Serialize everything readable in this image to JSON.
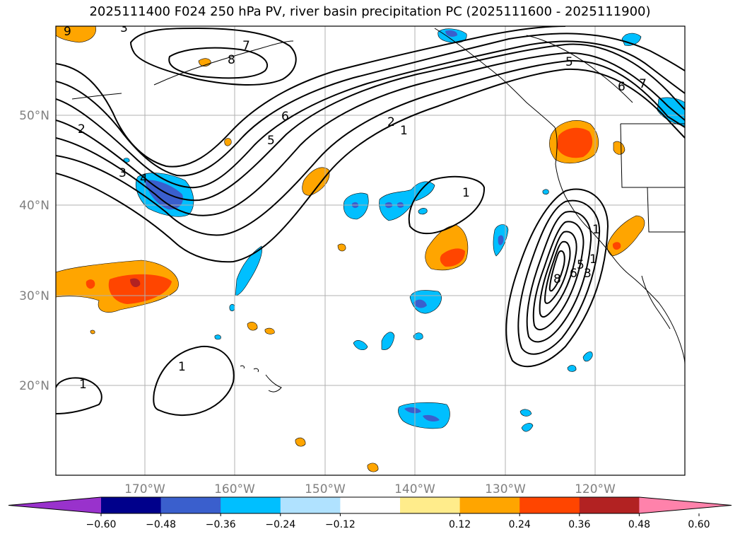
{
  "title": "2025111400 F024 250 hPa PV, river basin precipitation PC (2025111600 - 2025111900)",
  "axes": {
    "lat_labels": [
      "50°N",
      "40°N",
      "30°N",
      "20°N"
    ],
    "lon_labels": [
      "170°W",
      "160°W",
      "150°W",
      "140°W",
      "130°W",
      "120°W"
    ]
  },
  "contour_labels": [
    "9",
    "3",
    "8",
    "7",
    "2",
    "6",
    "5",
    "1",
    "3",
    "4",
    "1",
    "2",
    "1",
    "5",
    "6",
    "7",
    "1",
    "8",
    "6",
    "5",
    "3",
    "1",
    "1"
  ],
  "colorbar": {
    "ticks": [
      "−0.60",
      "−0.48",
      "−0.36",
      "−0.24",
      "−0.12",
      "0.12",
      "0.24",
      "0.36",
      "0.48",
      "0.60"
    ],
    "colors": [
      "#9932cc",
      "#00008b",
      "#3a5fcd",
      "#00bfff",
      "#b0e2ff",
      "#ffffff",
      "#ffec8b",
      "#ffa500",
      "#ff4500",
      "#b22222",
      "#ff82ab"
    ]
  },
  "fill_colors": {
    "neg_light": "#00bfff",
    "neg_mid": "#3a5fcd",
    "pos_light": "#ffa500",
    "pos_mid": "#ff4500",
    "pos_strong": "#b22222"
  }
}
